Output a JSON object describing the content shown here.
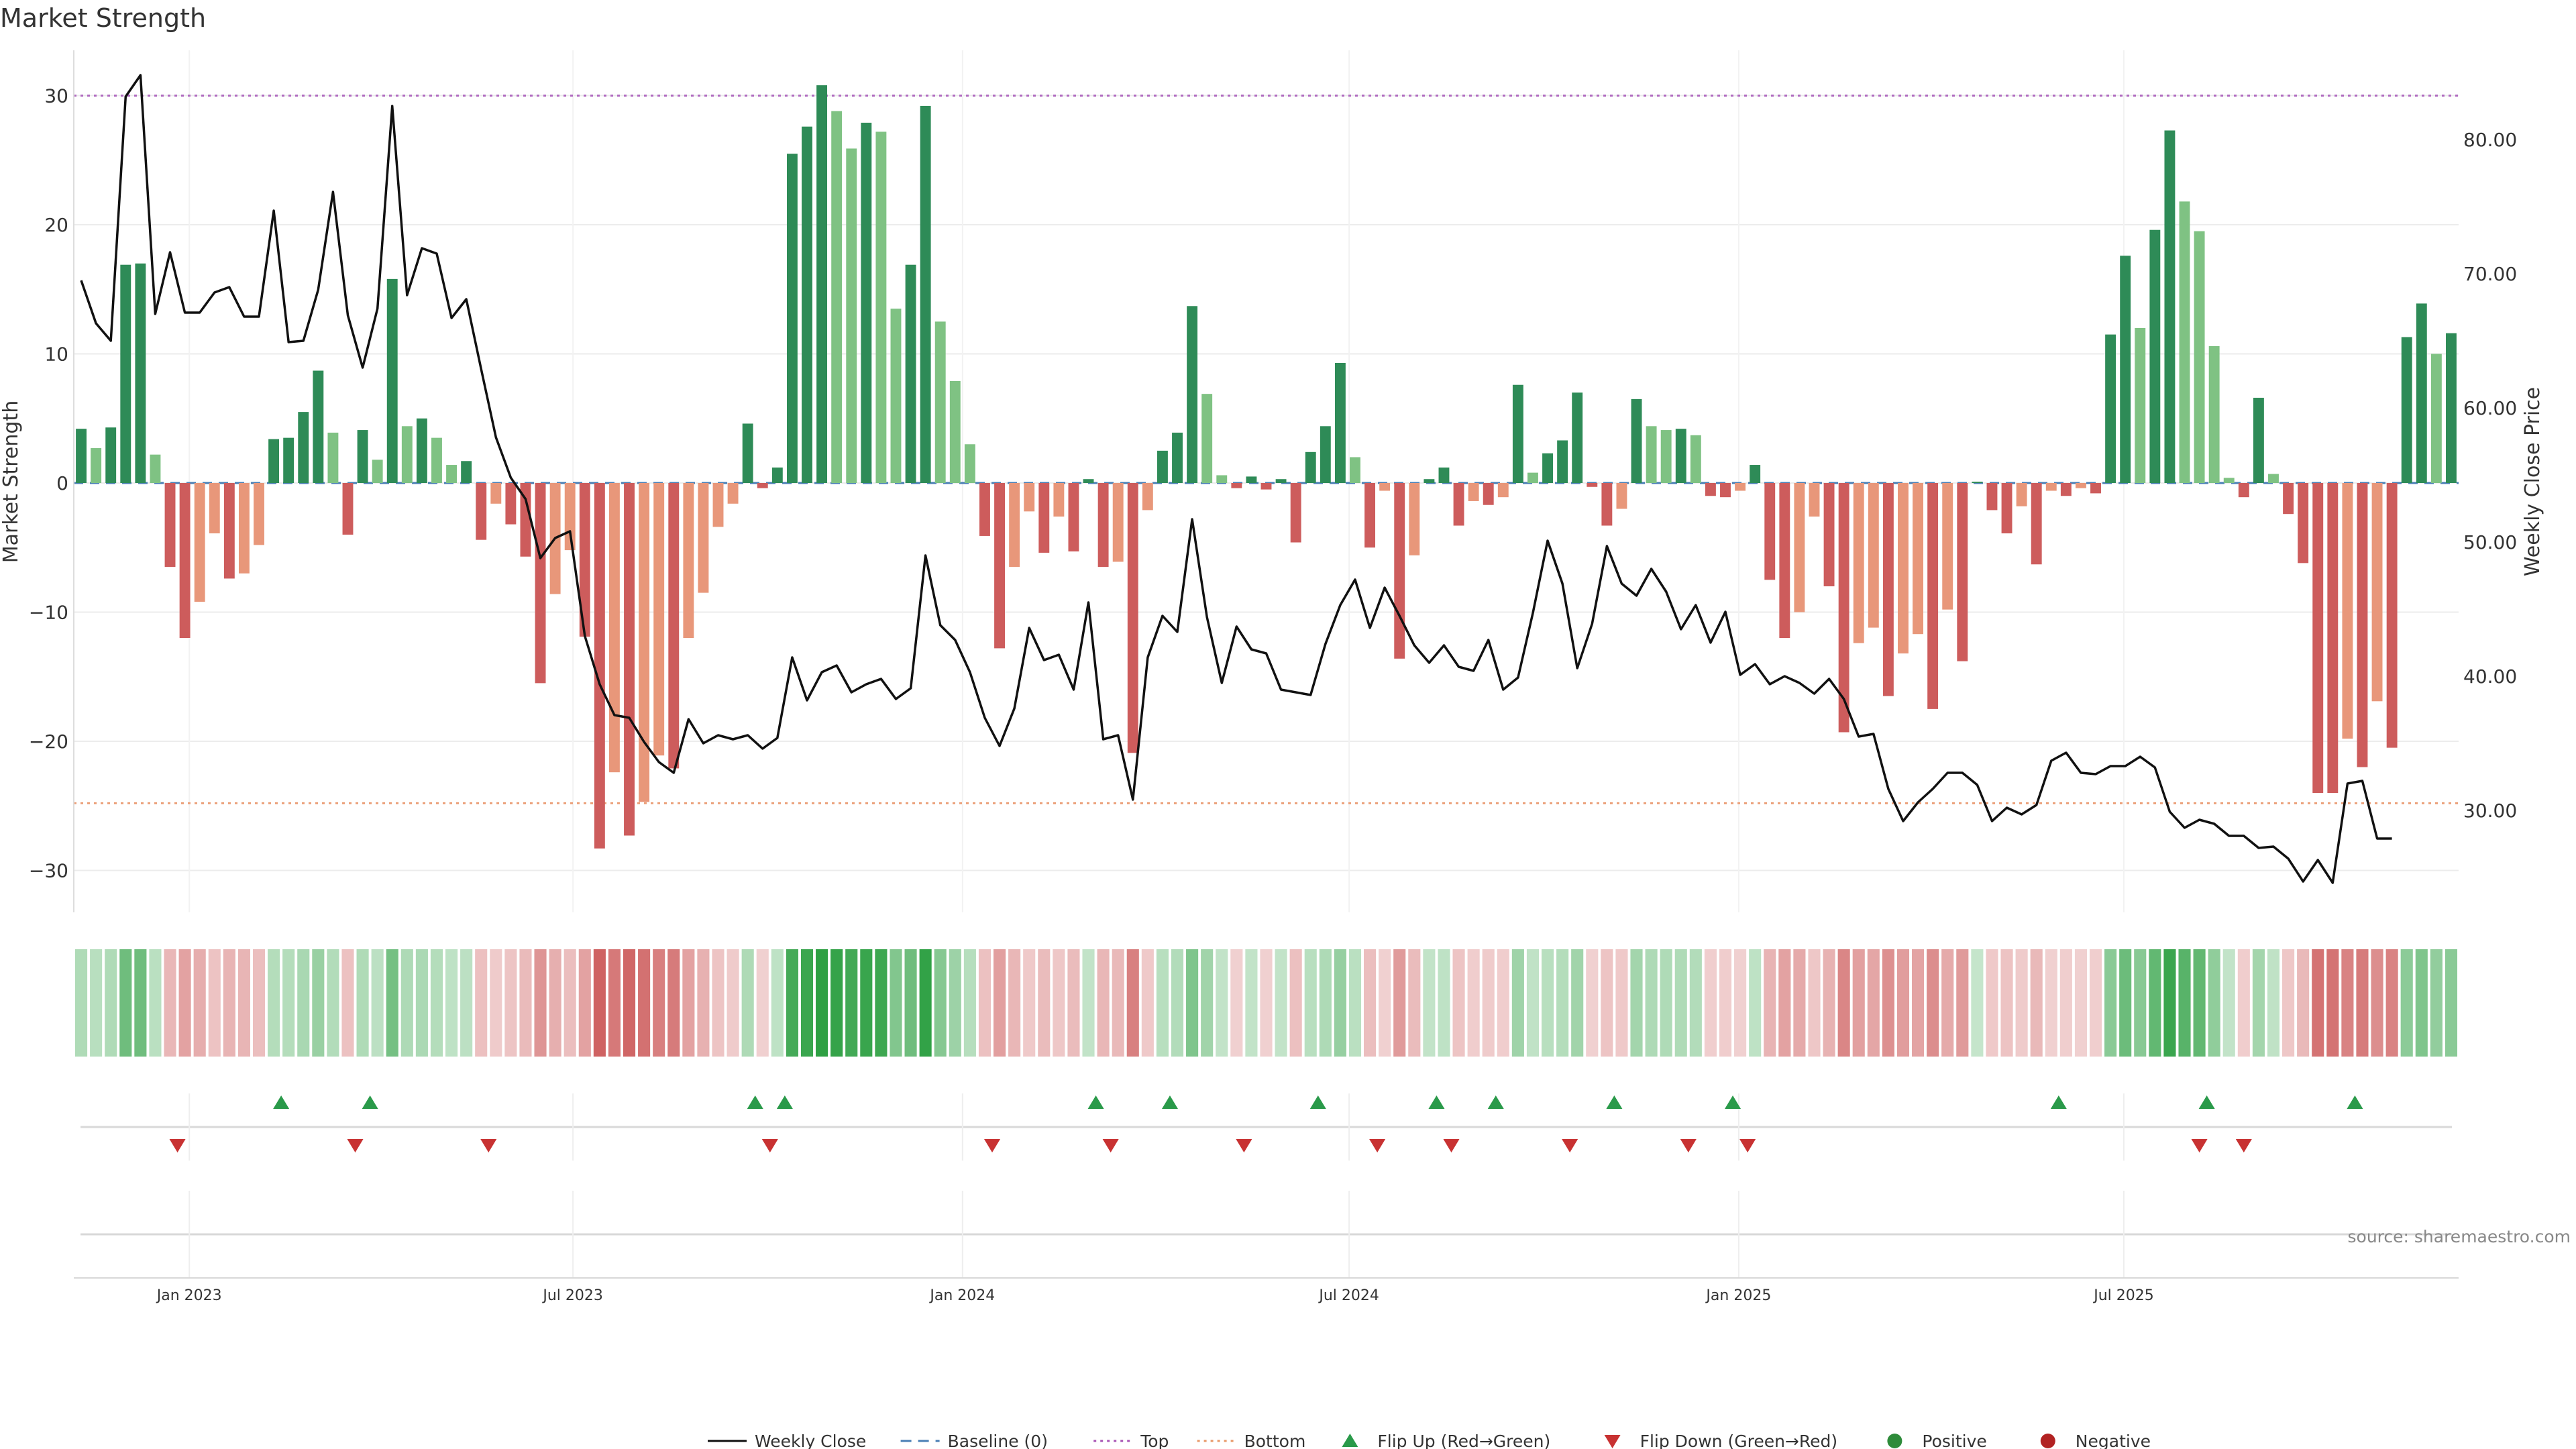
{
  "chart_data": {
    "type": "bar",
    "title": "Market Strength",
    "ylabel": "Market Strength",
    "y2label": "Weekly Close Price",
    "ylim": [
      -33,
      33
    ],
    "y2lim": [
      22.8,
      87.7
    ],
    "yticks": [
      30,
      20,
      10,
      0,
      -10,
      -20,
      -30
    ],
    "y2ticks": [
      "80.00",
      "70.00",
      "60.00",
      "50.00",
      "40.00",
      "30.00"
    ],
    "top_line": 30,
    "bottom_line": -24.8,
    "date_ticks": [
      {
        "label": "Jan 2023",
        "index": 7.3
      },
      {
        "label": "Jul 2023",
        "index": 33.2
      },
      {
        "label": "Jan 2024",
        "index": 59.5
      },
      {
        "label": "Jul 2024",
        "index": 85.6
      },
      {
        "label": "Jan 2025",
        "index": 111.9
      },
      {
        "label": "Jul 2025",
        "index": 137.9
      }
    ],
    "strength": [
      4.2,
      2.7,
      4.3,
      16.9,
      17.0,
      2.2,
      -6.5,
      -12.0,
      -9.2,
      -3.9,
      -7.4,
      -7.0,
      -4.8,
      3.4,
      3.5,
      5.5,
      8.7,
      3.9,
      -4.0,
      4.1,
      1.8,
      15.8,
      4.4,
      5.0,
      3.5,
      1.4,
      1.7,
      -4.4,
      -1.6,
      -3.2,
      -5.7,
      -15.5,
      -8.6,
      -5.2,
      -11.9,
      -28.3,
      -22.4,
      -27.3,
      -24.7,
      -21.1,
      -22.1,
      -12.0,
      -8.5,
      -3.4,
      -1.6,
      4.6,
      -0.4,
      1.2,
      25.5,
      27.6,
      30.8,
      28.8,
      25.9,
      27.9,
      27.2,
      13.5,
      16.9,
      29.2,
      12.5,
      7.9,
      3.0,
      -4.1,
      -12.8,
      -6.5,
      -2.2,
      -5.4,
      -2.6,
      -5.3,
      0.3,
      -6.5,
      -6.1,
      -20.9,
      -2.1,
      2.5,
      3.9,
      13.7,
      6.9,
      0.6,
      -0.4,
      0.5,
      -0.5,
      0.3,
      -4.6,
      2.4,
      4.4,
      9.3,
      2.0,
      -5.0,
      -0.6,
      -13.6,
      -5.6,
      0.3,
      1.2,
      -3.3,
      -1.4,
      -1.7,
      -1.1,
      7.6,
      0.8,
      2.3,
      3.3,
      7.0,
      -0.3,
      -3.3,
      -2.0,
      6.5,
      4.4,
      4.1,
      4.2,
      3.7,
      -1.0,
      -1.1,
      -0.6,
      1.4,
      -7.5,
      -12.0,
      -10.0,
      -2.6,
      -8.0,
      -19.3,
      -12.4,
      -11.2,
      -16.5,
      -13.2,
      -11.7,
      -17.5,
      -9.8,
      -13.8,
      0.1,
      -2.1,
      -3.9,
      -1.8,
      -6.3,
      -0.6,
      -1.0,
      -0.4,
      -0.8,
      11.5,
      17.6,
      12.0,
      19.6,
      27.3,
      21.8,
      19.5,
      10.6,
      0.4,
      -1.1,
      6.6,
      0.7,
      -2.4,
      -6.2,
      -24.0,
      -24.0,
      -19.8,
      -22.0,
      -16.9,
      -20.5,
      11.3,
      13.9,
      10.0,
      11.6
    ],
    "price": [
      69.5,
      66.3,
      65.0,
      83.2,
      84.8,
      67.0,
      71.6,
      67.1,
      67.1,
      68.6,
      69.0,
      66.8,
      66.8,
      74.7,
      64.9,
      65.0,
      68.8,
      76.1,
      66.9,
      63.0,
      67.4,
      82.5,
      68.4,
      71.9,
      71.5,
      66.7,
      68.1,
      62.9,
      57.8,
      54.8,
      53.2,
      48.8,
      50.3,
      50.8,
      43.0,
      39.4,
      37.1,
      36.9,
      35.1,
      33.6,
      32.8,
      36.8,
      35.0,
      35.6,
      35.3,
      35.6,
      34.6,
      35.4,
      41.4,
      38.2,
      40.3,
      40.8,
      38.8,
      39.4,
      39.8,
      38.3,
      39.1,
      49.0,
      43.8,
      42.7,
      40.3,
      36.9,
      34.8,
      37.6,
      43.6,
      41.2,
      41.6,
      39.0,
      45.5,
      35.3,
      35.6,
      30.8,
      41.4,
      44.5,
      43.3,
      51.7,
      44.4,
      39.5,
      43.7,
      42.0,
      41.7,
      39.0,
      38.8,
      38.6,
      42.4,
      45.3,
      47.2,
      43.6,
      46.6,
      44.5,
      42.3,
      41.0,
      42.3,
      40.7,
      40.4,
      42.7,
      39.0,
      39.9,
      44.7,
      50.1,
      46.9,
      40.6,
      43.9,
      49.7,
      46.9,
      46.0,
      48.0,
      46.3,
      43.5,
      45.3,
      42.5,
      44.8,
      40.1,
      40.9,
      39.4,
      40.0,
      39.5,
      38.7,
      39.8,
      38.3,
      35.5,
      35.7,
      31.6,
      29.2,
      30.6,
      31.6,
      32.8,
      32.8,
      31.9,
      29.2,
      30.2,
      29.7,
      30.4,
      33.7,
      34.3,
      32.8,
      32.7,
      33.3,
      33.3,
      34.0,
      33.2,
      29.9,
      28.7,
      29.3,
      29.0,
      28.1,
      28.1,
      27.2,
      27.3,
      26.4,
      24.7,
      26.3,
      24.6,
      32.0,
      32.2,
      27.9,
      27.9
    ],
    "flip_up": [
      13.5,
      19.5,
      45.5,
      47.5,
      68.5,
      73.5,
      83.5,
      91.5,
      95.5,
      103.5,
      111.5,
      133.5,
      143.5,
      153.5
    ],
    "flip_down": [
      6.5,
      18.5,
      27.5,
      46.5,
      61.5,
      69.5,
      78.5,
      87.5,
      92.5,
      100.5,
      108.5,
      112.5,
      143.0,
      146.0
    ],
    "legend": [
      {
        "label": "Weekly Close",
        "kind": "line",
        "color": "#111111"
      },
      {
        "label": "Baseline (0)",
        "kind": "dash",
        "color": "#4a7fb5"
      },
      {
        "label": "Top",
        "kind": "dot",
        "color": "#a855b5"
      },
      {
        "label": "Bottom",
        "kind": "dot",
        "color": "#e89a6a"
      },
      {
        "label": "Flip Up (Red→Green)",
        "kind": "up",
        "color": "#2a9a4a"
      },
      {
        "label": "Flip Down (Green→Red)",
        "kind": "down",
        "color": "#c83232"
      },
      {
        "label": "Positive",
        "kind": "dot-marker",
        "color": "#2e8b3a"
      },
      {
        "label": "Negative",
        "kind": "dot-marker",
        "color": "#b22222"
      }
    ],
    "source": "source: sharemaestro.com"
  },
  "colors": {
    "pos_strong": "#2e8b57",
    "pos_weak": "#7fc283",
    "neg_strong": "#cd5c5c",
    "neg_weak": "#e8977a",
    "price_line": "#111111"
  }
}
